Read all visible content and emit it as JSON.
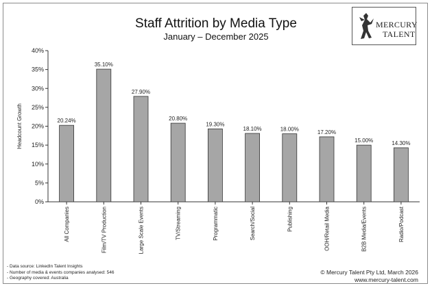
{
  "chart_data": {
    "type": "bar",
    "title": "Staff Attrition by Media Type",
    "subtitle": "January – December 2025",
    "ylabel": "Headcount Growth",
    "xlabel": "",
    "ylim": [
      0,
      40
    ],
    "yticks": [
      0,
      5,
      10,
      15,
      20,
      25,
      30,
      35,
      40
    ],
    "ytick_labels": [
      "0%",
      "5%",
      "10%",
      "15%",
      "20%",
      "25%",
      "30%",
      "35%",
      "40%"
    ],
    "categories": [
      "All Companies",
      "Film/TV Production",
      "Large Scale Events",
      "TV/Streaming",
      "Programmatic",
      "Search/Social",
      "Publishing",
      "OOH/Retail Media",
      "B2B Media/Events",
      "Radio/Podcast"
    ],
    "values": [
      20.24,
      35.1,
      27.9,
      20.8,
      19.3,
      18.1,
      18.0,
      17.2,
      15.0,
      14.3
    ],
    "data_labels": [
      "20.24%",
      "35.10%",
      "27.90%",
      "20.80%",
      "19.30%",
      "18.10%",
      "18.00%",
      "17.20%",
      "15.00%",
      "14.30%"
    ],
    "bar_color": "#a6a6a6",
    "bar_stroke": "#333333",
    "grid": false,
    "legend": "none"
  },
  "logo": {
    "line1": "MERCURY",
    "line2": "TALENT",
    "icon": "winged-mercury-figure-icon"
  },
  "footer": {
    "notes": [
      "- Data source: LinkedIn Talent Insights",
      "- Number of media & events companies analysed: 546",
      "- Geography covered: Australia"
    ],
    "copyright": "© Mercury Talent Pty Ltd, March 2026",
    "website": "www.mercury-talent.com"
  }
}
